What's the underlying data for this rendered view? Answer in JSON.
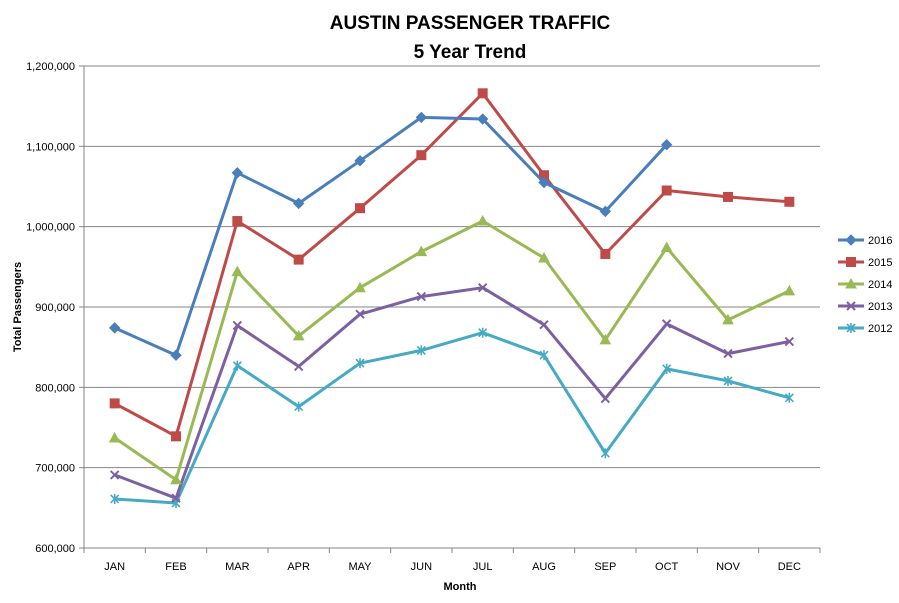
{
  "chart_data": {
    "type": "line",
    "title": "AUSTIN PASSENGER TRAFFIC",
    "subtitle": "5 Year Trend",
    "xlabel": "Month",
    "ylabel": "Total Passengers",
    "categories": [
      "JAN",
      "FEB",
      "MAR",
      "APR",
      "MAY",
      "JUN",
      "JUL",
      "AUG",
      "SEP",
      "OCT",
      "NOV",
      "DEC"
    ],
    "ylim": [
      600000,
      1200000
    ],
    "yticks": [
      600000,
      700000,
      800000,
      900000,
      1000000,
      1100000,
      1200000
    ],
    "ytick_labels": [
      "600,000",
      "700,000",
      "800,000",
      "900,000",
      "1,000,000",
      "1,100,000",
      "1,200,000"
    ],
    "grid": true,
    "legend_position": "right",
    "series": [
      {
        "name": "2016",
        "color": "#4a7ebb",
        "marker": "diamond",
        "values": [
          874000,
          840000,
          1067000,
          1029000,
          1082000,
          1136000,
          1134000,
          1055000,
          1019000,
          1102000,
          null,
          null
        ]
      },
      {
        "name": "2015",
        "color": "#be4b48",
        "marker": "square",
        "values": [
          780000,
          739000,
          1007000,
          959000,
          1023000,
          1089000,
          1166000,
          1064000,
          966000,
          1045000,
          1037000,
          1031000
        ]
      },
      {
        "name": "2014",
        "color": "#98b954",
        "marker": "triangle",
        "values": [
          737000,
          685000,
          944000,
          864000,
          924000,
          969000,
          1007000,
          961000,
          859000,
          974000,
          884000,
          920000
        ]
      },
      {
        "name": "2013",
        "color": "#7d60a0",
        "marker": "x",
        "values": [
          691000,
          662000,
          877000,
          826000,
          891000,
          913000,
          924000,
          878000,
          786000,
          879000,
          842000,
          857000
        ]
      },
      {
        "name": "2012",
        "color": "#46aac5",
        "marker": "star",
        "values": [
          661000,
          656000,
          827000,
          776000,
          830000,
          846000,
          868000,
          840000,
          718000,
          823000,
          808000,
          787000
        ]
      }
    ]
  }
}
